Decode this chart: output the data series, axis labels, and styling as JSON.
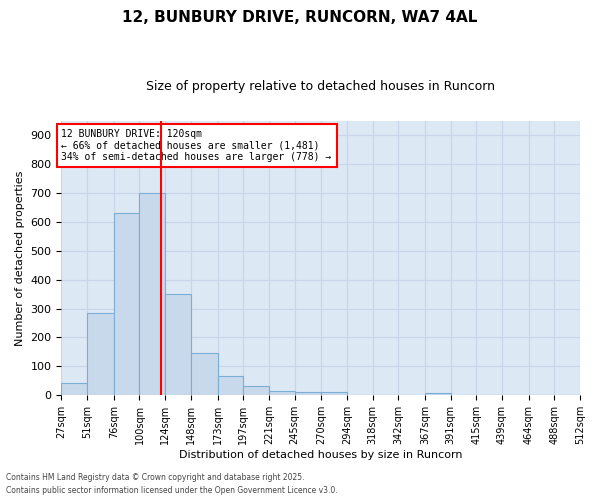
{
  "title1": "12, BUNBURY DRIVE, RUNCORN, WA7 4AL",
  "title2": "Size of property relative to detached houses in Runcorn",
  "xlabel": "Distribution of detached houses by size in Runcorn",
  "ylabel": "Number of detached properties",
  "bar_edges": [
    27,
    51,
    76,
    100,
    124,
    148,
    173,
    197,
    221,
    245,
    270,
    294,
    318,
    342,
    367,
    391,
    415,
    439,
    464,
    488,
    512
  ],
  "bar_heights": [
    44,
    285,
    632,
    700,
    350,
    147,
    68,
    32,
    15,
    11,
    10,
    0,
    0,
    0,
    8,
    0,
    0,
    0,
    0,
    0
  ],
  "bar_color": "#c9d9ec",
  "bar_edgecolor": "#7aaed4",
  "bar_linewidth": 0.8,
  "vline_x": 120,
  "vline_color": "red",
  "vline_linewidth": 1.5,
  "ylim": [
    0,
    950
  ],
  "yticks": [
    0,
    100,
    200,
    300,
    400,
    500,
    600,
    700,
    800,
    900
  ],
  "grid_color": "#c8d4e8",
  "background_color": "#dde8f5",
  "annotation_title": "12 BUNBURY DRIVE: 120sqm",
  "annotation_line1": "← 66% of detached houses are smaller (1,481)",
  "annotation_line2": "34% of semi-detached houses are larger (778) →",
  "annotation_box_color": "white",
  "annotation_box_edgecolor": "red",
  "footnote1": "Contains HM Land Registry data © Crown copyright and database right 2025.",
  "footnote2": "Contains public sector information licensed under the Open Government Licence v3.0.",
  "title_fontsize": 11,
  "subtitle_fontsize": 9,
  "axis_label_fontsize": 8,
  "tick_fontsize": 7,
  "tick_labels": [
    "27sqm",
    "51sqm",
    "76sqm",
    "100sqm",
    "124sqm",
    "148sqm",
    "173sqm",
    "197sqm",
    "221sqm",
    "245sqm",
    "270sqm",
    "294sqm",
    "318sqm",
    "342sqm",
    "367sqm",
    "391sqm",
    "415sqm",
    "439sqm",
    "464sqm",
    "488sqm",
    "512sqm"
  ]
}
